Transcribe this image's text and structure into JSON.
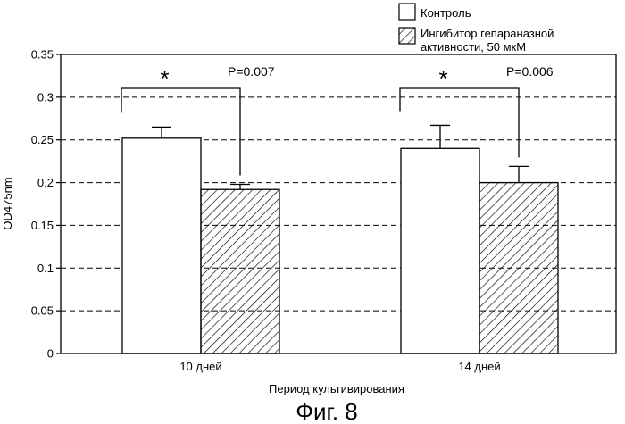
{
  "figure": {
    "caption": "Фиг. 8"
  },
  "chart_data": {
    "type": "bar",
    "xlabel": "Период культивирования",
    "ylabel": "OD475nm",
    "ylim": [
      0,
      0.35
    ],
    "yticks": [
      "0",
      "0.05",
      "0.1",
      "0.15",
      "0.2",
      "0.25",
      "0.3",
      "0.35"
    ],
    "ytick_values": [
      0,
      0.05,
      0.1,
      0.15,
      0.2,
      0.25,
      0.3,
      0.35
    ],
    "grid": "horizontal dashed",
    "legend_position": "top-right",
    "categories": [
      "10 дней",
      "14 дней"
    ],
    "series": [
      {
        "name": "Контроль",
        "values": [
          0.252,
          0.24
        ],
        "errors": [
          0.013,
          0.027
        ],
        "fill": "white"
      },
      {
        "name": "Ингибитор гепараназной активности, 50 мкМ",
        "legend_lines": [
          "Ингибитор гепараназной",
          "активности, 50 мкМ"
        ],
        "values": [
          0.192,
          0.2
        ],
        "errors": [
          0.006,
          0.019
        ],
        "fill": "hatched"
      }
    ],
    "annotations": [
      {
        "category": "10 дней",
        "star": "*",
        "p_value": "P=0.007"
      },
      {
        "category": "14 дней",
        "star": "*",
        "p_value": "P=0.006"
      }
    ],
    "colors": {
      "bar_stroke": "#000000",
      "hatch": "#000000",
      "grid": "#000000"
    }
  }
}
